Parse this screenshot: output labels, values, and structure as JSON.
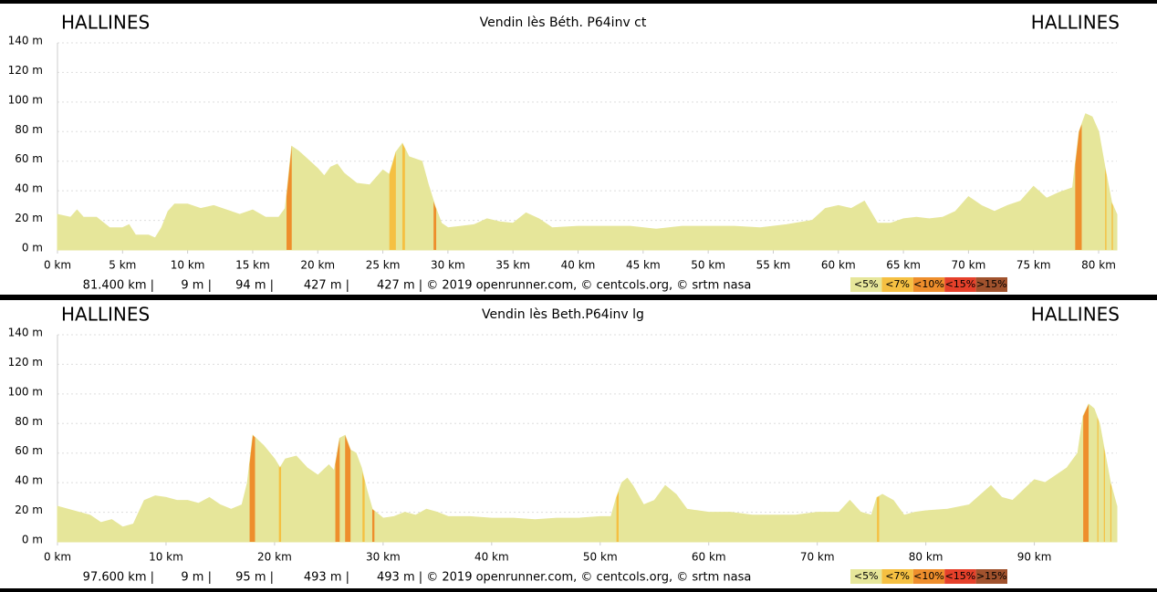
{
  "chart_data": [
    {
      "type": "area",
      "title": "Vendin lès Béth. P64inv ct",
      "label_left": "HALLINES",
      "label_right": "HALLINES",
      "color": "#e6e69a",
      "x": [
        0,
        1,
        1.5,
        2,
        3,
        4,
        5,
        5.5,
        6,
        7,
        7.5,
        8,
        8.5,
        9,
        10,
        11,
        12,
        13,
        14,
        15,
        16,
        17,
        17.5,
        18,
        18.5,
        19,
        20,
        20.5,
        21,
        21.5,
        22,
        23,
        24,
        25,
        25.5,
        26,
        26.5,
        27,
        28,
        28.5,
        29,
        29.5,
        30,
        31,
        32,
        33,
        34,
        35,
        36,
        37,
        38,
        40,
        42,
        44,
        46,
        48,
        50,
        52,
        54,
        56,
        58,
        59,
        60,
        61,
        62,
        63,
        64,
        65,
        66,
        67,
        68,
        69,
        70,
        71,
        72,
        73,
        74,
        75,
        76,
        77,
        78,
        78.5,
        79,
        79.5,
        80,
        80.5,
        81,
        81.4
      ],
      "values": [
        24,
        22,
        27,
        22,
        22,
        15,
        15,
        17,
        10,
        10,
        8,
        15,
        26,
        31,
        31,
        28,
        30,
        27,
        24,
        27,
        22,
        22,
        28,
        70,
        67,
        63,
        55,
        50,
        56,
        58,
        52,
        45,
        44,
        54,
        51,
        66,
        72,
        63,
        60,
        44,
        30,
        18,
        15,
        16,
        17,
        21,
        19,
        18,
        25,
        21,
        15,
        16,
        16,
        16,
        14,
        16,
        16,
        16,
        15,
        17,
        20,
        28,
        30,
        28,
        33,
        18,
        18,
        21,
        22,
        21,
        22,
        26,
        36,
        30,
        26,
        30,
        33,
        43,
        35,
        39,
        42,
        80,
        92,
        90,
        80,
        55,
        32,
        24
      ],
      "xlim": [
        0,
        81.4
      ],
      "xticks": [
        {
          "value": 0,
          "label": "0 km"
        },
        {
          "value": 5,
          "label": "5 km"
        },
        {
          "value": 10,
          "label": "10 km"
        },
        {
          "value": 15,
          "label": "15 km"
        },
        {
          "value": 20,
          "label": "20 km"
        },
        {
          "value": 25,
          "label": "25 km"
        },
        {
          "value": 30,
          "label": "30 km"
        },
        {
          "value": 35,
          "label": "35 km"
        },
        {
          "value": 40,
          "label": "40 km"
        },
        {
          "value": 45,
          "label": "45 km"
        },
        {
          "value": 50,
          "label": "50 km"
        },
        {
          "value": 55,
          "label": "55 km"
        },
        {
          "value": 60,
          "label": "60 km"
        },
        {
          "value": 65,
          "label": "65 km"
        },
        {
          "value": 70,
          "label": "70 km"
        },
        {
          "value": 75,
          "label": "75 km"
        },
        {
          "value": 80,
          "label": "80 km"
        }
      ],
      "ylim": [
        0,
        140
      ],
      "yticks": [
        {
          "value": 0,
          "label": "0 m"
        },
        {
          "value": 20,
          "label": "20 m"
        },
        {
          "value": 40,
          "label": "40 m"
        },
        {
          "value": 60,
          "label": "60 m"
        },
        {
          "value": 80,
          "label": "80 m"
        },
        {
          "value": 100,
          "label": "100 m"
        },
        {
          "value": 120,
          "label": "120 m"
        },
        {
          "value": 140,
          "label": "140 m"
        }
      ],
      "grid": true,
      "gradient_bands": [
        {
          "x": [
            17.6,
            18.0
          ],
          "color": "#ee8e2c"
        },
        {
          "x": [
            25.5,
            26.0
          ],
          "color": "#f5c042"
        },
        {
          "x": [
            26.5,
            26.7
          ],
          "color": "#f5c042"
        },
        {
          "x": [
            28.9,
            29.1
          ],
          "color": "#ee8e2c"
        },
        {
          "x": [
            78.2,
            78.7
          ],
          "color": "#ee8e2c"
        },
        {
          "x": [
            80.5,
            80.6
          ],
          "color": "#f5c042"
        },
        {
          "x": [
            81.0,
            81.1
          ],
          "color": "#f5c042"
        }
      ],
      "stats": [
        "81.400 km |",
        "9 m |",
        "94 m |",
        "427 m |",
        "427 m | © 2019 openrunner.com, © centcols.org, © srtm nasa"
      ],
      "legend": [
        {
          "label": "<5%",
          "color": "#e6e69a"
        },
        {
          "label": "<7%",
          "color": "#f5c042"
        },
        {
          "label": "<10%",
          "color": "#ee8e2c"
        },
        {
          "label": "<15%",
          "color": "#e5402a"
        },
        {
          "label": ">15%",
          "color": "#a0522d"
        }
      ]
    },
    {
      "type": "area",
      "title": "Vendin lès Beth.P64inv lg",
      "label_left": "HALLINES",
      "label_right": "HALLINES",
      "color": "#e6e69a",
      "x": [
        0,
        1,
        2,
        3,
        4,
        5,
        6,
        7,
        7.5,
        8,
        9,
        10,
        11,
        12,
        13,
        14,
        15,
        16,
        17,
        17.5,
        18,
        19,
        20,
        20.5,
        21,
        22,
        23,
        24,
        25,
        25.5,
        26,
        26.5,
        27,
        27.5,
        28,
        28.5,
        29,
        30,
        31,
        32,
        33,
        34,
        35,
        36,
        38,
        40,
        42,
        44,
        46,
        48,
        50,
        51,
        51.5,
        52,
        52.5,
        53,
        54,
        55,
        56,
        57,
        58,
        60,
        62,
        64,
        66,
        68,
        70,
        72,
        73,
        74,
        75,
        75.5,
        76,
        77,
        78,
        79,
        80,
        82,
        84,
        86,
        87,
        88,
        89,
        90,
        91,
        92,
        93,
        94,
        94.5,
        95,
        95.5,
        96,
        96.5,
        97,
        97.6
      ],
      "values": [
        24,
        22,
        20,
        18,
        13,
        15,
        10,
        12,
        20,
        28,
        31,
        30,
        28,
        28,
        26,
        30,
        25,
        22,
        25,
        40,
        72,
        65,
        56,
        50,
        56,
        58,
        50,
        45,
        52,
        48,
        70,
        72,
        62,
        60,
        50,
        35,
        22,
        16,
        17,
        20,
        18,
        22,
        20,
        17,
        17,
        16,
        16,
        15,
        16,
        16,
        17,
        17,
        30,
        40,
        43,
        38,
        25,
        28,
        38,
        32,
        22,
        20,
        20,
        18,
        18,
        18,
        20,
        20,
        28,
        20,
        18,
        30,
        32,
        28,
        18,
        20,
        21,
        22,
        25,
        38,
        30,
        28,
        35,
        42,
        40,
        45,
        50,
        60,
        85,
        93,
        90,
        80,
        60,
        40,
        24
      ],
      "xlim": [
        0,
        97.6
      ],
      "xticks": [
        {
          "value": 0,
          "label": "0 km"
        },
        {
          "value": 10,
          "label": "10 km"
        },
        {
          "value": 20,
          "label": "20 km"
        },
        {
          "value": 30,
          "label": "30 km"
        },
        {
          "value": 40,
          "label": "40 km"
        },
        {
          "value": 50,
          "label": "50 km"
        },
        {
          "value": 60,
          "label": "60 km"
        },
        {
          "value": 70,
          "label": "70 km"
        },
        {
          "value": 80,
          "label": "80 km"
        },
        {
          "value": 90,
          "label": "90 km"
        }
      ],
      "ylim": [
        0,
        140
      ],
      "yticks": [
        {
          "value": 0,
          "label": "0 m"
        },
        {
          "value": 20,
          "label": "20 m"
        },
        {
          "value": 40,
          "label": "40 m"
        },
        {
          "value": 60,
          "label": "60 m"
        },
        {
          "value": 80,
          "label": "80 m"
        },
        {
          "value": 100,
          "label": "100 m"
        },
        {
          "value": 120,
          "label": "120 m"
        },
        {
          "value": 140,
          "label": "140 m"
        }
      ],
      "grid": true,
      "gradient_bands": [
        {
          "x": [
            17.7,
            18.2
          ],
          "color": "#ee8e2c"
        },
        {
          "x": [
            20.4,
            20.6
          ],
          "color": "#f5c042"
        },
        {
          "x": [
            25.6,
            26.0
          ],
          "color": "#ee8e2c"
        },
        {
          "x": [
            26.5,
            27.0
          ],
          "color": "#ee8e2c"
        },
        {
          "x": [
            28.1,
            28.3
          ],
          "color": "#f5c042"
        },
        {
          "x": [
            29.0,
            29.2
          ],
          "color": "#ee8e2c"
        },
        {
          "x": [
            51.5,
            51.7
          ],
          "color": "#f5c042"
        },
        {
          "x": [
            75.5,
            75.7
          ],
          "color": "#f5c042"
        },
        {
          "x": [
            94.5,
            95.0
          ],
          "color": "#ee8e2c"
        },
        {
          "x": [
            95.8,
            95.9
          ],
          "color": "#f5c042"
        },
        {
          "x": [
            96.4,
            96.5
          ],
          "color": "#f5c042"
        },
        {
          "x": [
            97.0,
            97.1
          ],
          "color": "#f5c042"
        }
      ],
      "stats": [
        "97.600 km |",
        "9 m |",
        "95 m |",
        "493 m |",
        "493 m | © 2019 openrunner.com, © centcols.org, © srtm nasa"
      ],
      "legend": [
        {
          "label": "<5%",
          "color": "#e6e69a"
        },
        {
          "label": "<7%",
          "color": "#f5c042"
        },
        {
          "label": "<10%",
          "color": "#ee8e2c"
        },
        {
          "label": "<15%",
          "color": "#e5402a"
        },
        {
          "label": ">15%",
          "color": "#a0522d"
        }
      ]
    }
  ]
}
